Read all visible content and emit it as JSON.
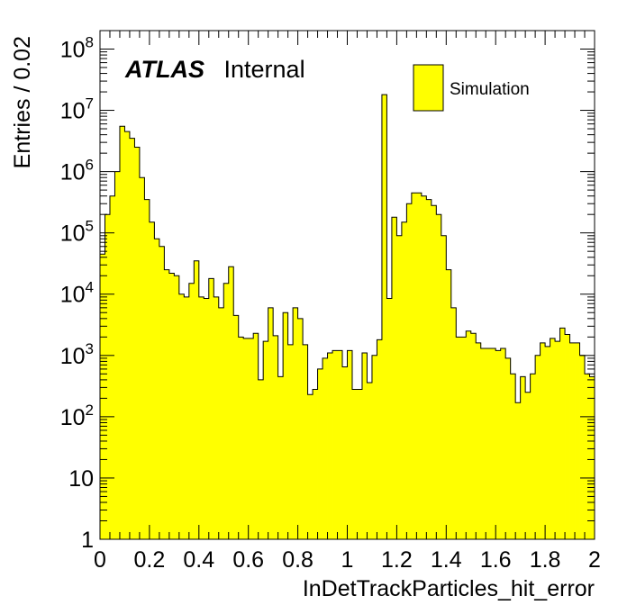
{
  "chart_data": {
    "type": "bar",
    "histogram_style": "step-filled",
    "title": "",
    "xlabel": "InDetTrackParticles_hit_error",
    "ylabel": "Entries / 0.02",
    "xlim": [
      0,
      2
    ],
    "ylim": [
      1,
      200000000
    ],
    "log_y": true,
    "bin_width": 0.02,
    "fill_color": "#ffff00",
    "line_color": "#000000",
    "x_ticks": [
      {
        "value": 0,
        "label": "0"
      },
      {
        "value": 0.2,
        "label": "0.2"
      },
      {
        "value": 0.4,
        "label": "0.4"
      },
      {
        "value": 0.6,
        "label": "0.6"
      },
      {
        "value": 0.8,
        "label": "0.8"
      },
      {
        "value": 1.0,
        "label": "1"
      },
      {
        "value": 1.2,
        "label": "1.2"
      },
      {
        "value": 1.4,
        "label": "1.4"
      },
      {
        "value": 1.6,
        "label": "1.6"
      },
      {
        "value": 1.8,
        "label": "1.8"
      },
      {
        "value": 2.0,
        "label": "2"
      }
    ],
    "y_ticks": [
      {
        "value": 1,
        "base": "1",
        "exp": ""
      },
      {
        "value": 10,
        "base": "10",
        "exp": ""
      },
      {
        "value": 100,
        "base": "10",
        "exp": "2"
      },
      {
        "value": 1000,
        "base": "10",
        "exp": "3"
      },
      {
        "value": 10000,
        "base": "10",
        "exp": "4"
      },
      {
        "value": 100000,
        "base": "10",
        "exp": "5"
      },
      {
        "value": 1000000,
        "base": "10",
        "exp": "6"
      },
      {
        "value": 10000000,
        "base": "10",
        "exp": "7"
      },
      {
        "value": 100000000,
        "base": "10",
        "exp": "8"
      }
    ],
    "bins_low_edge": [
      0.0,
      0.02,
      0.04,
      0.06,
      0.08,
      0.1,
      0.12,
      0.14,
      0.16,
      0.18,
      0.2,
      0.22,
      0.24,
      0.26,
      0.28,
      0.3,
      0.32,
      0.34,
      0.36,
      0.38,
      0.4,
      0.42,
      0.44,
      0.46,
      0.48,
      0.5,
      0.52,
      0.54,
      0.56,
      0.58,
      0.6,
      0.62,
      0.64,
      0.66,
      0.68,
      0.7,
      0.72,
      0.74,
      0.76,
      0.78,
      0.8,
      0.82,
      0.84,
      0.86,
      0.88,
      0.9,
      0.92,
      0.94,
      0.96,
      0.98,
      1.0,
      1.02,
      1.04,
      1.06,
      1.08,
      1.1,
      1.12,
      1.14,
      1.16,
      1.18,
      1.2,
      1.22,
      1.24,
      1.26,
      1.28,
      1.3,
      1.32,
      1.34,
      1.36,
      1.38,
      1.4,
      1.42,
      1.44,
      1.46,
      1.48,
      1.5,
      1.52,
      1.54,
      1.56,
      1.58,
      1.6,
      1.62,
      1.64,
      1.66,
      1.68,
      1.7,
      1.72,
      1.74,
      1.76,
      1.78,
      1.8,
      1.82,
      1.84,
      1.86,
      1.88,
      1.9,
      1.92,
      1.94,
      1.96,
      1.98
    ],
    "values": [
      45000,
      200000,
      400000,
      1000000,
      5500000,
      4500000,
      3500000,
      2500000,
      800000,
      350000,
      150000,
      80000,
      60000,
      25000,
      22000,
      20000,
      10000,
      9000,
      15000,
      35000,
      9000,
      8500,
      18000,
      9000,
      6000,
      15000,
      28000,
      4500,
      2000,
      1900,
      1900,
      2300,
      400,
      1700,
      6000,
      2100,
      450,
      5000,
      1500,
      6000,
      4000,
      1500,
      230,
      280,
      600,
      900,
      1100,
      1200,
      1200,
      650,
      1200,
      280,
      280,
      1100,
      360,
      1000,
      1800,
      18000000,
      8500,
      180000,
      90000,
      150000,
      300000,
      450000,
      450000,
      400000,
      350000,
      280000,
      200000,
      90000,
      25000,
      6000,
      2000,
      2000,
      2500,
      2300,
      1600,
      1300,
      1300,
      1300,
      1200,
      1300,
      900,
      500,
      170,
      450,
      250,
      500,
      1000,
      1600,
      1400,
      1900,
      1700,
      2800,
      2200,
      1600,
      1600,
      1000,
      500,
      450
    ]
  },
  "atlas_label": {
    "bold": "ATLAS",
    "normal": "Internal"
  },
  "legend": {
    "entry": "Simulation",
    "placement": "top-right"
  }
}
